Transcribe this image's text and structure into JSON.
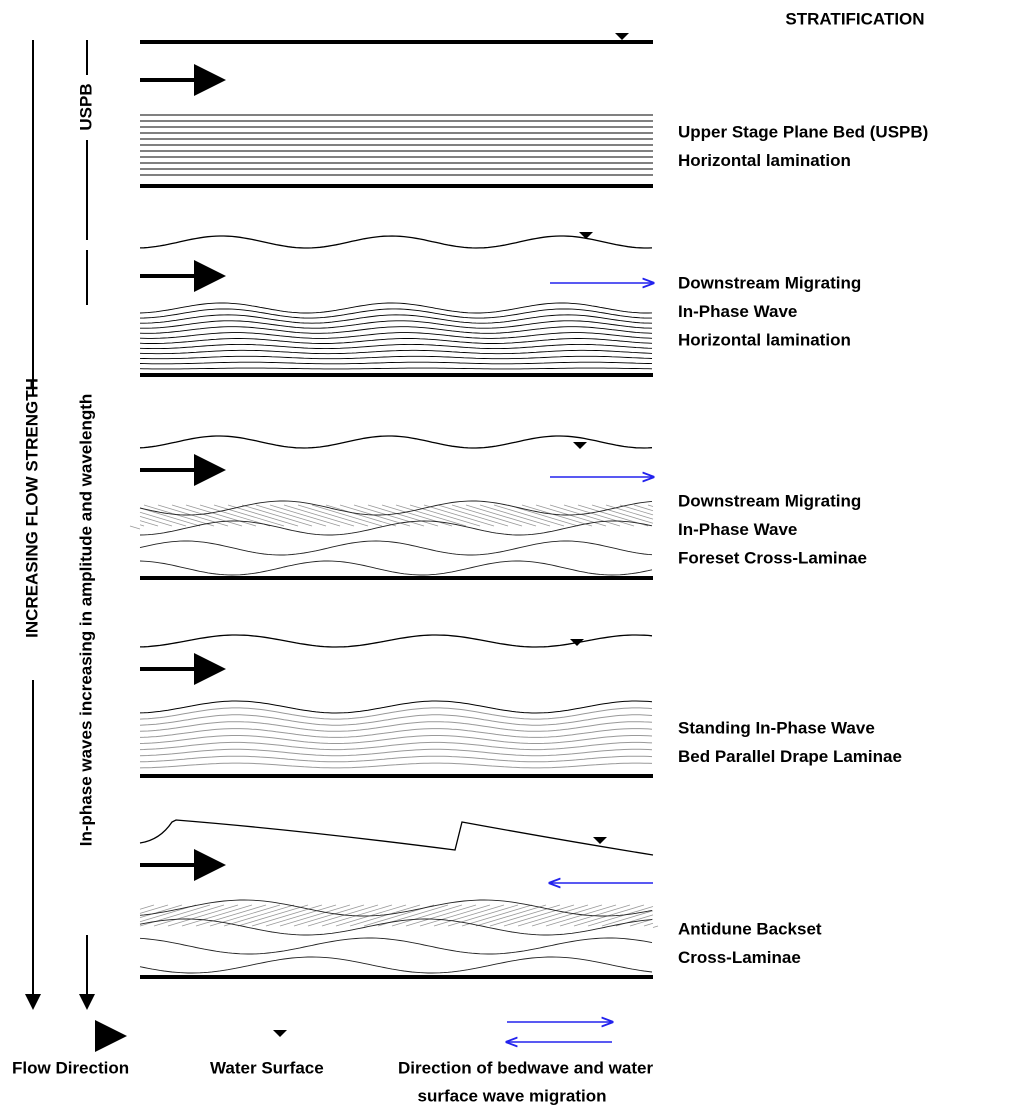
{
  "header": {
    "title": "STRATIFICATION"
  },
  "axis_labels": {
    "flow": "INCREASING FLOW STRENGTH",
    "waves": "In-phase waves increasing in amplitude and wavelength",
    "uspb": "USPB"
  },
  "panels": [
    {
      "lines": [
        "Upper Stage Plane Bed (USPB)",
        "Horizontal lamination"
      ]
    },
    {
      "lines": [
        "Downstream Migrating",
        "In-Phase Wave",
        "Horizontal lamination"
      ]
    },
    {
      "lines": [
        "Downstream Migrating",
        "In-Phase Wave",
        "Foreset Cross-Laminae"
      ]
    },
    {
      "lines": [
        "Standing In-Phase Wave",
        "Bed Parallel Drape Laminae"
      ]
    },
    {
      "lines": [
        "Antidune Backset",
        "Cross-Laminae"
      ]
    }
  ],
  "legend": {
    "flow": "Flow Direction",
    "surface": "Water Surface",
    "migration": [
      "Direction of bedwave and water",
      "surface wave migration"
    ]
  }
}
